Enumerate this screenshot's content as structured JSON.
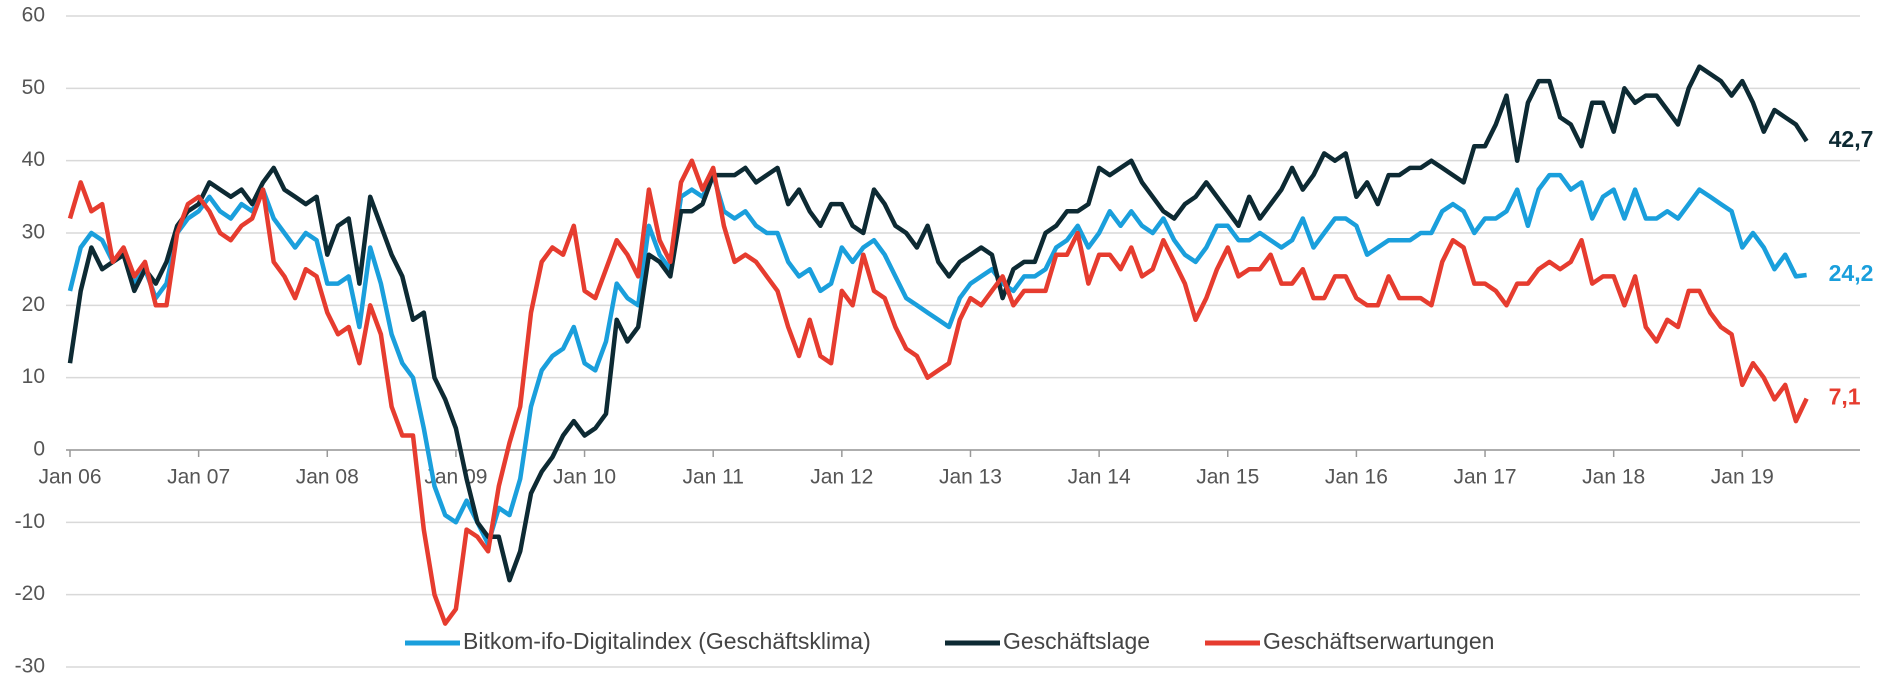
{
  "chart_data": {
    "type": "line",
    "categories": [
      "Jan 06",
      null,
      null,
      null,
      null,
      null,
      null,
      null,
      null,
      null,
      null,
      null,
      "Jan 07",
      null,
      null,
      null,
      null,
      null,
      null,
      null,
      null,
      null,
      null,
      null,
      "Jan 08",
      null,
      null,
      null,
      null,
      null,
      null,
      null,
      null,
      null,
      null,
      null,
      "Jan 09",
      null,
      null,
      null,
      null,
      null,
      null,
      null,
      null,
      null,
      null,
      null,
      "Jan 10",
      null,
      null,
      null,
      null,
      null,
      null,
      null,
      null,
      null,
      null,
      null,
      "Jan 11",
      null,
      null,
      null,
      null,
      null,
      null,
      null,
      null,
      null,
      null,
      null,
      "Jan 12",
      null,
      null,
      null,
      null,
      null,
      null,
      null,
      null,
      null,
      null,
      null,
      "Jan 13",
      null,
      null,
      null,
      null,
      null,
      null,
      null,
      null,
      null,
      null,
      null,
      "Jan 14",
      null,
      null,
      null,
      null,
      null,
      null,
      null,
      null,
      null,
      null,
      null,
      "Jan 15",
      null,
      null,
      null,
      null,
      null,
      null,
      null,
      null,
      null,
      null,
      null,
      "Jan 16",
      null,
      null,
      null,
      null,
      null,
      null,
      null,
      null,
      null,
      null,
      null,
      "Jan 17",
      null,
      null,
      null,
      null,
      null,
      null,
      null,
      null,
      null,
      null,
      null,
      "Jan 18",
      null,
      null,
      null,
      null,
      null,
      null,
      null,
      null,
      null,
      null,
      null,
      "Jan 19",
      null,
      null,
      null,
      null,
      null,
      null
    ],
    "series": [
      {
        "name": "Bitkom-ifo-Digitalindex (Geschäftsklima)",
        "color": "#1a9fdc",
        "end_label": "24,2",
        "values": [
          22,
          28,
          30,
          29,
          26,
          27,
          23,
          25,
          21,
          23,
          30,
          32,
          33,
          35,
          33,
          32,
          34,
          33,
          36,
          32,
          30,
          28,
          30,
          29,
          23,
          23,
          24,
          17,
          28,
          23,
          16,
          12,
          10,
          3,
          -5,
          -9,
          -10,
          -7,
          -10,
          -13,
          -8,
          -9,
          -4,
          6,
          11,
          13,
          14,
          17,
          12,
          11,
          15,
          23,
          21,
          20,
          31,
          27,
          25,
          35,
          36,
          35,
          38,
          33,
          32,
          33,
          31,
          30,
          30,
          26,
          24,
          25,
          22,
          23,
          28,
          26,
          28,
          29,
          27,
          24,
          21,
          20,
          19,
          18,
          17,
          21,
          23,
          24,
          25,
          23,
          22,
          24,
          24,
          25,
          28,
          29,
          31,
          28,
          30,
          33,
          31,
          33,
          31,
          30,
          32,
          29,
          27,
          26,
          28,
          31,
          31,
          29,
          29,
          30,
          29,
          28,
          29,
          32,
          28,
          30,
          32,
          32,
          31,
          27,
          28,
          29,
          29,
          29,
          30,
          30,
          33,
          34,
          33,
          30,
          32,
          32,
          33,
          36,
          31,
          36,
          38,
          38,
          36,
          37,
          32,
          35,
          36,
          32,
          36,
          32,
          32,
          33,
          32,
          34,
          36,
          35,
          34,
          33,
          28,
          30,
          28,
          25,
          27,
          24,
          24.2
        ]
      },
      {
        "name": "Geschäftslage",
        "color": "#0d2a33",
        "end_label": "42,7",
        "values": [
          12,
          22,
          28,
          25,
          26,
          27,
          22,
          25,
          23,
          26,
          31,
          33,
          34,
          37,
          36,
          35,
          36,
          34,
          37,
          39,
          36,
          35,
          34,
          35,
          27,
          31,
          32,
          23,
          35,
          31,
          27,
          24,
          18,
          19,
          10,
          7,
          3,
          -4,
          -10,
          -12,
          -12,
          -18,
          -14,
          -6,
          -3,
          -1,
          2,
          4,
          2,
          3,
          5,
          18,
          15,
          17,
          27,
          26,
          24,
          33,
          33,
          34,
          38,
          38,
          38,
          39,
          37,
          38,
          39,
          34,
          36,
          33,
          31,
          34,
          34,
          31,
          30,
          36,
          34,
          31,
          30,
          28,
          31,
          26,
          24,
          26,
          27,
          28,
          27,
          21,
          25,
          26,
          26,
          30,
          31,
          33,
          33,
          34,
          39,
          38,
          39,
          40,
          37,
          35,
          33,
          32,
          34,
          35,
          37,
          35,
          33,
          31,
          35,
          32,
          34,
          36,
          39,
          36,
          38,
          41,
          40,
          41,
          35,
          37,
          34,
          38,
          38,
          39,
          39,
          40,
          39,
          38,
          37,
          42,
          42,
          45,
          49,
          40,
          48,
          51,
          51,
          46,
          45,
          42,
          48,
          48,
          44,
          50,
          48,
          49,
          49,
          47,
          45,
          50,
          53,
          52,
          51,
          49,
          51,
          48,
          44,
          47,
          46,
          45,
          42.7
        ]
      },
      {
        "name": "Geschäftserwartungen",
        "color": "#e63c2f",
        "end_label": "7,1",
        "values": [
          32,
          37,
          33,
          34,
          26,
          28,
          24,
          26,
          20,
          20,
          30,
          34,
          35,
          33,
          30,
          29,
          31,
          32,
          36,
          26,
          24,
          21,
          25,
          24,
          19,
          16,
          17,
          12,
          20,
          16,
          6,
          2,
          2,
          -11,
          -20,
          -24,
          -22,
          -11,
          -12,
          -14,
          -5,
          1,
          6,
          19,
          26,
          28,
          27,
          31,
          22,
          21,
          25,
          29,
          27,
          24,
          36,
          29,
          26,
          37,
          40,
          36,
          39,
          31,
          26,
          27,
          26,
          24,
          22,
          17,
          13,
          18,
          13,
          12,
          22,
          20,
          27,
          22,
          21,
          17,
          14,
          13,
          10,
          11,
          12,
          18,
          21,
          20,
          22,
          24,
          20,
          22,
          22,
          22,
          27,
          27,
          30,
          23,
          27,
          27,
          25,
          28,
          24,
          25,
          29,
          26,
          23,
          18,
          21,
          25,
          28,
          24,
          25,
          25,
          27,
          23,
          23,
          25,
          21,
          21,
          24,
          24,
          21,
          20,
          20,
          24,
          21,
          21,
          21,
          20,
          26,
          29,
          28,
          23,
          23,
          22,
          20,
          23,
          23,
          25,
          26,
          25,
          26,
          29,
          23,
          24,
          24,
          20,
          24,
          17,
          15,
          18,
          17,
          22,
          22,
          19,
          17,
          16,
          9,
          12,
          10,
          7,
          9,
          4,
          7.1
        ]
      }
    ],
    "ylim": [
      -30,
      60
    ],
    "yticks": [
      -30,
      -20,
      -10,
      0,
      10,
      20,
      30,
      40,
      50,
      60
    ],
    "grid": true,
    "legend": "bottom"
  }
}
